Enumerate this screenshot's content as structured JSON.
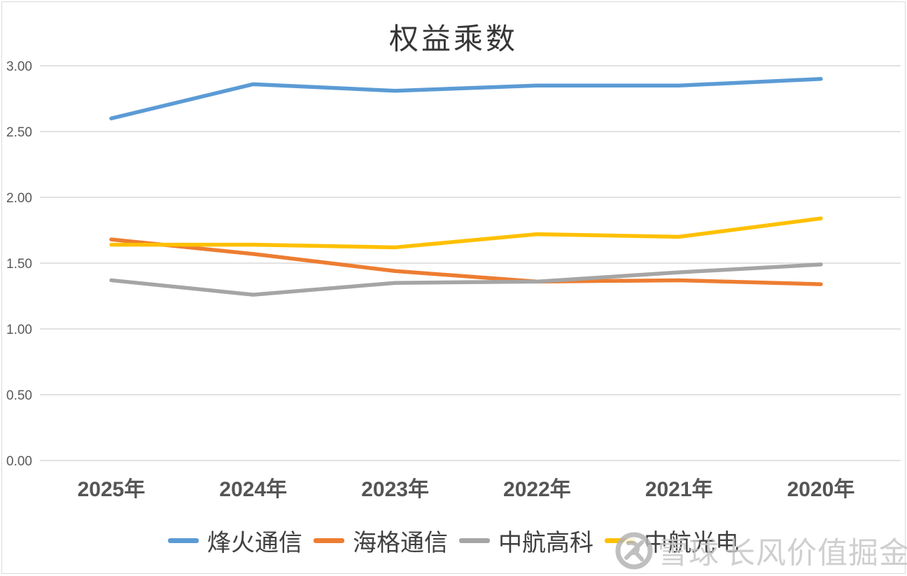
{
  "chart_data": {
    "type": "line",
    "title": "权益乘数",
    "categories": [
      "2025年",
      "2024年",
      "2023年",
      "2022年",
      "2021年",
      "2020年"
    ],
    "series": [
      {
        "name": "烽火通信",
        "color": "#5B9BD5",
        "values": [
          2.6,
          2.86,
          2.81,
          2.85,
          2.85,
          2.9
        ]
      },
      {
        "name": "海格通信",
        "color": "#ED7D31",
        "values": [
          1.68,
          1.57,
          1.44,
          1.36,
          1.37,
          1.34
        ]
      },
      {
        "name": "中航高科",
        "color": "#A5A5A5",
        "values": [
          1.37,
          1.26,
          1.35,
          1.36,
          1.43,
          1.49
        ]
      },
      {
        "name": "中航光电",
        "color": "#FFC000",
        "values": [
          1.64,
          1.64,
          1.62,
          1.72,
          1.7,
          1.84
        ]
      }
    ],
    "xlabel": "",
    "ylabel": "",
    "ylim": [
      0,
      3
    ],
    "ytick_step": 0.5,
    "yticks": [
      {
        "value": 0.0,
        "label": "0.00"
      },
      {
        "value": 0.5,
        "label": "0.50"
      },
      {
        "value": 1.0,
        "label": "1.00"
      },
      {
        "value": 1.5,
        "label": "1.50"
      },
      {
        "value": 2.0,
        "label": "2.00"
      },
      {
        "value": 2.5,
        "label": "2.50"
      },
      {
        "value": 3.0,
        "label": "3.00"
      }
    ],
    "grid": "horizontal",
    "gridline_color": "#d9d9d9",
    "legend_position": "bottom"
  },
  "watermark": {
    "logo": "xueqiu-logo",
    "brand": "雪球",
    "account": "长风价值掘金"
  }
}
